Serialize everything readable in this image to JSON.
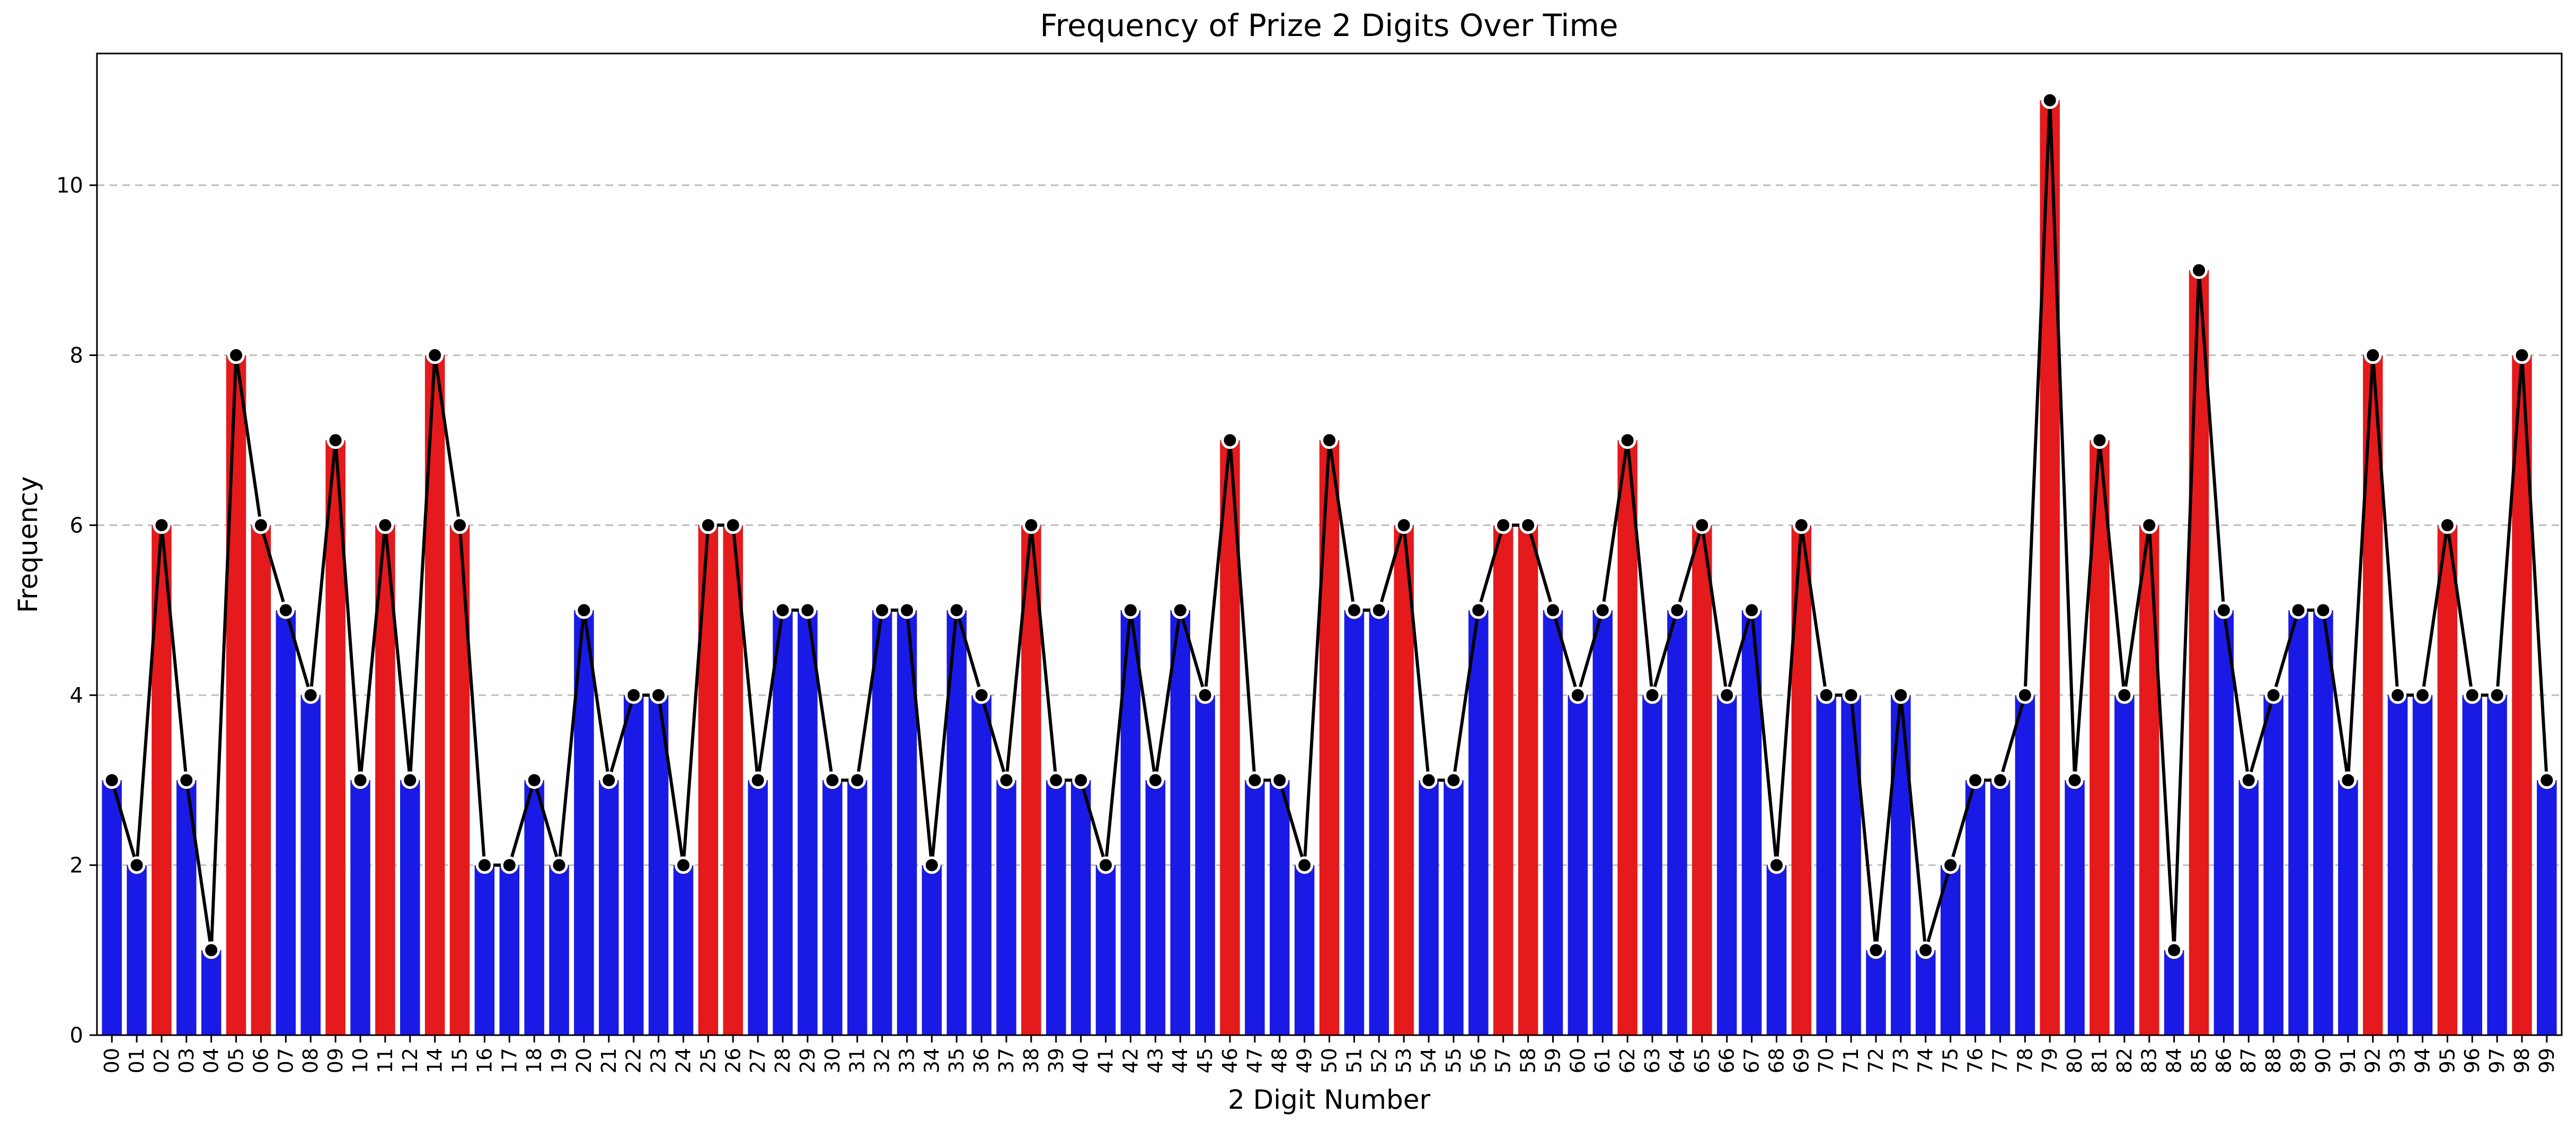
{
  "chart_data": {
    "type": "bar",
    "title": "Frequency of Prize 2 Digits Over Time",
    "xlabel": "2 Digit Number",
    "ylabel": "Frequency",
    "ylim": [
      0,
      11.55
    ],
    "yticks": [
      0,
      2,
      4,
      6,
      8,
      10
    ],
    "ytick_labels": [
      "0",
      "2",
      "4",
      "6",
      "8",
      "10"
    ],
    "grid": "y-dashed",
    "colors": {
      "high": "#e41a1c",
      "normal": "#1a1ae6",
      "line": "#000000",
      "marker_edge": "#ffffff"
    },
    "highlight_rule": "values >= 6 drawn in red",
    "categories": [
      "00",
      "01",
      "02",
      "03",
      "04",
      "05",
      "06",
      "07",
      "08",
      "09",
      "10",
      "11",
      "12",
      "14",
      "15",
      "16",
      "17",
      "18",
      "19",
      "20",
      "21",
      "22",
      "23",
      "24",
      "25",
      "26",
      "27",
      "28",
      "29",
      "30",
      "31",
      "32",
      "33",
      "34",
      "35",
      "36",
      "37",
      "38",
      "39",
      "40",
      "41",
      "42",
      "43",
      "44",
      "45",
      "46",
      "47",
      "48",
      "49",
      "50",
      "51",
      "52",
      "53",
      "54",
      "55",
      "56",
      "57",
      "58",
      "59",
      "60",
      "61",
      "62",
      "63",
      "64",
      "65",
      "66",
      "67",
      "68",
      "69",
      "70",
      "71",
      "72",
      "73",
      "74",
      "75",
      "76",
      "77",
      "78",
      "79",
      "80",
      "81",
      "82",
      "83",
      "84",
      "85",
      "86",
      "87",
      "88",
      "89",
      "90",
      "91",
      "92",
      "93",
      "94",
      "95",
      "96",
      "97",
      "98",
      "99"
    ],
    "values": [
      3,
      2,
      6,
      3,
      1,
      8,
      6,
      5,
      4,
      7,
      3,
      6,
      3,
      8,
      6,
      2,
      2,
      3,
      2,
      5,
      3,
      4,
      4,
      2,
      6,
      6,
      3,
      5,
      5,
      3,
      3,
      5,
      5,
      2,
      5,
      4,
      3,
      6,
      3,
      3,
      2,
      5,
      3,
      5,
      4,
      7,
      3,
      3,
      2,
      7,
      5,
      5,
      6,
      3,
      3,
      5,
      6,
      6,
      5,
      4,
      5,
      7,
      4,
      5,
      6,
      4,
      5,
      2,
      6,
      4,
      4,
      1,
      4,
      1,
      2,
      3,
      3,
      4,
      11,
      3,
      7,
      4,
      6,
      1,
      9,
      5,
      3,
      4,
      5,
      5,
      3,
      8,
      4,
      4,
      6,
      4,
      4,
      8,
      3
    ],
    "series": [
      {
        "name": "",
        "kind": "bar"
      },
      {
        "name": "",
        "kind": "line-with-markers"
      }
    ]
  }
}
